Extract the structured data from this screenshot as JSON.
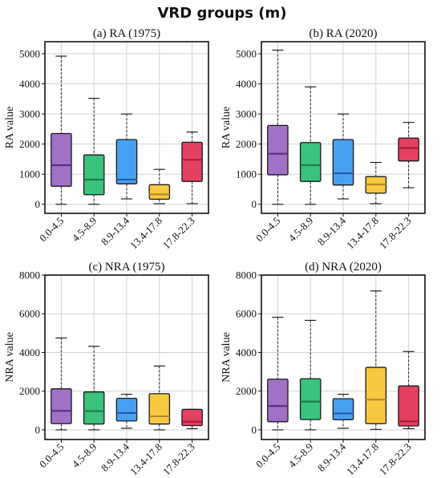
{
  "figure": {
    "title": "VRD groups (m)"
  },
  "colors": {
    "series": [
      "#9e68c4",
      "#2ec076",
      "#3e9bf0",
      "#f6c637",
      "#e3365a"
    ],
    "median": [
      "#5a2b86",
      "#1d7a45",
      "#2a57a8",
      "#b7862a",
      "#a8193a"
    ]
  },
  "chart_data": [
    {
      "type": "box",
      "title": "(a) RA (1975)",
      "xlabel": "",
      "ylabel": "RA value",
      "categories": [
        "0.0-4.5",
        "4.5-8.9",
        "8.9-13.4",
        "13.4-17.8",
        "17.8-22.3"
      ],
      "ylim": [
        -300,
        5400
      ],
      "yticks": [
        0,
        1000,
        2000,
        3000,
        4000,
        5000
      ],
      "boxes": [
        {
          "min": 0,
          "q1": 600,
          "median": 1300,
          "q3": 2350,
          "max": 4920
        },
        {
          "min": 0,
          "q1": 320,
          "median": 820,
          "q3": 1640,
          "max": 3520
        },
        {
          "min": 180,
          "q1": 680,
          "median": 820,
          "q3": 2150,
          "max": 3000
        },
        {
          "min": 20,
          "q1": 170,
          "median": 330,
          "q3": 650,
          "max": 1160
        },
        {
          "min": 20,
          "q1": 760,
          "median": 1480,
          "q3": 2060,
          "max": 2400
        }
      ],
      "grid": true
    },
    {
      "type": "box",
      "title": "(b) RA (2020)",
      "xlabel": "",
      "ylabel": "RA value",
      "categories": [
        "0.0-4.5",
        "4.5-8.9",
        "8.9-13.4",
        "13.4-17.8",
        "17.8-22.3"
      ],
      "ylim": [
        -300,
        5400
      ],
      "yticks": [
        0,
        1000,
        2000,
        3000,
        4000,
        5000
      ],
      "boxes": [
        {
          "min": 0,
          "q1": 980,
          "median": 1680,
          "q3": 2620,
          "max": 5120
        },
        {
          "min": 0,
          "q1": 760,
          "median": 1300,
          "q3": 2050,
          "max": 3900
        },
        {
          "min": 180,
          "q1": 640,
          "median": 1030,
          "q3": 2150,
          "max": 3000
        },
        {
          "min": 20,
          "q1": 370,
          "median": 660,
          "q3": 920,
          "max": 1390
        },
        {
          "min": 550,
          "q1": 1440,
          "median": 1870,
          "q3": 2200,
          "max": 2720
        }
      ],
      "grid": true
    },
    {
      "type": "box",
      "title": "(c) NRA (1975)",
      "xlabel": "",
      "ylabel": "NRA value",
      "categories": [
        "0.0-4.5",
        "4.5-8.9",
        "8.9-13.4",
        "13.4-17.8",
        "17.8-22.3"
      ],
      "ylim": [
        -500,
        8000
      ],
      "yticks": [
        0,
        2000,
        4000,
        6000,
        8000
      ],
      "boxes": [
        {
          "min": 0,
          "q1": 320,
          "median": 980,
          "q3": 2120,
          "max": 4750
        },
        {
          "min": 0,
          "q1": 300,
          "median": 970,
          "q3": 1960,
          "max": 4320
        },
        {
          "min": 80,
          "q1": 460,
          "median": 870,
          "q3": 1630,
          "max": 1840
        },
        {
          "min": 0,
          "q1": 300,
          "median": 700,
          "q3": 1870,
          "max": 3300
        },
        {
          "min": 60,
          "q1": 220,
          "median": 420,
          "q3": 1060,
          "max": 1060
        }
      ],
      "grid": true
    },
    {
      "type": "box",
      "title": "(d) NRA (2020)",
      "xlabel": "",
      "ylabel": "NRA value",
      "categories": [
        "0.0-4.5",
        "4.5-8.9",
        "8.9-13.4",
        "13.4-17.8",
        "17.8-22.3"
      ],
      "ylim": [
        -500,
        8000
      ],
      "yticks": [
        0,
        2000,
        4000,
        6000,
        8000
      ],
      "boxes": [
        {
          "min": 0,
          "q1": 420,
          "median": 1230,
          "q3": 2620,
          "max": 5820
        },
        {
          "min": 0,
          "q1": 530,
          "median": 1460,
          "q3": 2640,
          "max": 5660
        },
        {
          "min": 80,
          "q1": 520,
          "median": 850,
          "q3": 1610,
          "max": 1840
        },
        {
          "min": 20,
          "q1": 320,
          "median": 1560,
          "q3": 3230,
          "max": 7180
        },
        {
          "min": 60,
          "q1": 200,
          "median": 440,
          "q3": 2270,
          "max": 4050
        }
      ],
      "grid": true
    }
  ]
}
